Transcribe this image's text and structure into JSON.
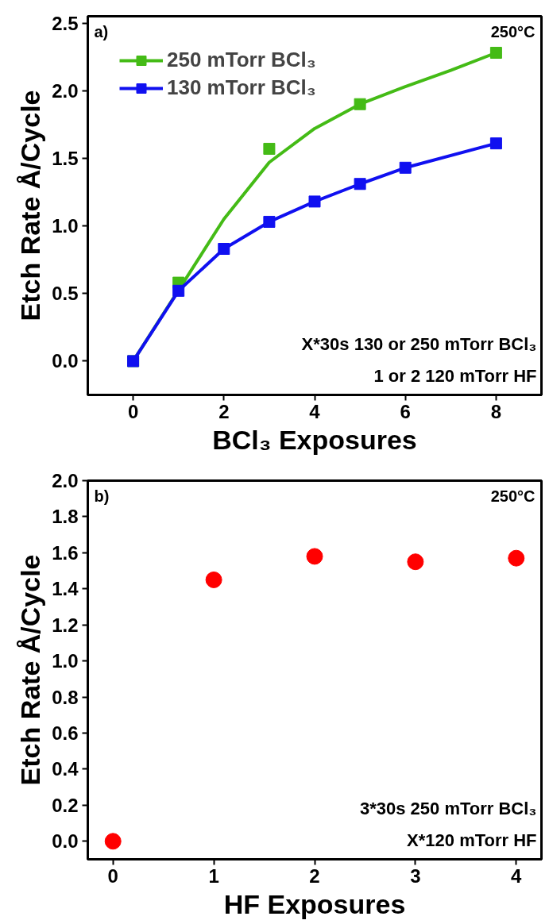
{
  "chart_data": [
    {
      "type": "line",
      "xlabel": "BCl₃ Exposures",
      "ylabel": "Etch Rate Å/Cycle",
      "xlim": [
        -1,
        9
      ],
      "ylim": [
        -0.25,
        2.55
      ],
      "xticks": [
        0,
        2,
        4,
        6,
        8
      ],
      "yticks": [
        {
          "value": 0,
          "label": "0.0"
        },
        0.5,
        {
          "value": 1,
          "label": "1.0"
        },
        1.5,
        {
          "value": 2,
          "label": "2.0"
        },
        2.5
      ],
      "grid": false,
      "legend": "top left",
      "annotations": [
        "a)",
        "250°C",
        "X*30s 130 or 250 mTorr BCl₃",
        "1 or 2 120 mTorr HF"
      ],
      "series": [
        {
          "name": "250 mTorr BCl₃",
          "type": "scatter",
          "marker": "square",
          "color": "#44bb16",
          "x": [
            0,
            1,
            3,
            5,
            8
          ],
          "values": [
            0,
            0.58,
            1.57,
            1.9,
            2.28
          ]
        },
        {
          "type": "line",
          "color": "#44bb16",
          "x": [
            0,
            2,
            3,
            4,
            5,
            6,
            7,
            8
          ],
          "values": [
            0,
            1.05,
            1.47,
            1.72,
            1.9,
            2.03,
            2.15,
            2.28
          ]
        },
        {
          "name": "130 mTorr BCl₃",
          "type": "line",
          "marker": "square",
          "color": "#1010f0",
          "x": [
            0,
            1,
            2,
            3,
            4,
            5,
            6,
            8
          ],
          "values": [
            0,
            0.52,
            0.83,
            1.03,
            1.18,
            1.31,
            1.43,
            1.61
          ]
        }
      ]
    },
    {
      "type": "scatter",
      "xlabel": "HF Exposures",
      "ylabel": "Etch Rate Å/Cycle",
      "xlim": [
        -0.25,
        4.25
      ],
      "ylim": [
        -0.1,
        2.0
      ],
      "xticks": [
        0,
        1,
        2,
        3,
        4
      ],
      "yticks": [
        {
          "value": 0,
          "label": "0.0"
        },
        0.2,
        0.4,
        0.6,
        0.8,
        {
          "value": 1,
          "label": "1.0"
        },
        1.2,
        1.4,
        1.6,
        1.8,
        {
          "value": 2,
          "label": "2.0"
        }
      ],
      "grid": false,
      "marker": "circle",
      "annotations": [
        "b)",
        "250°C",
        "3*30s 250 mTorr BCl₃",
        "X*120 mTorr HF"
      ],
      "series": [
        {
          "color": "#ff0000",
          "x": [
            0,
            1,
            2,
            3,
            4
          ],
          "values": [
            0,
            1.45,
            1.58,
            1.55,
            1.57
          ]
        }
      ]
    }
  ]
}
